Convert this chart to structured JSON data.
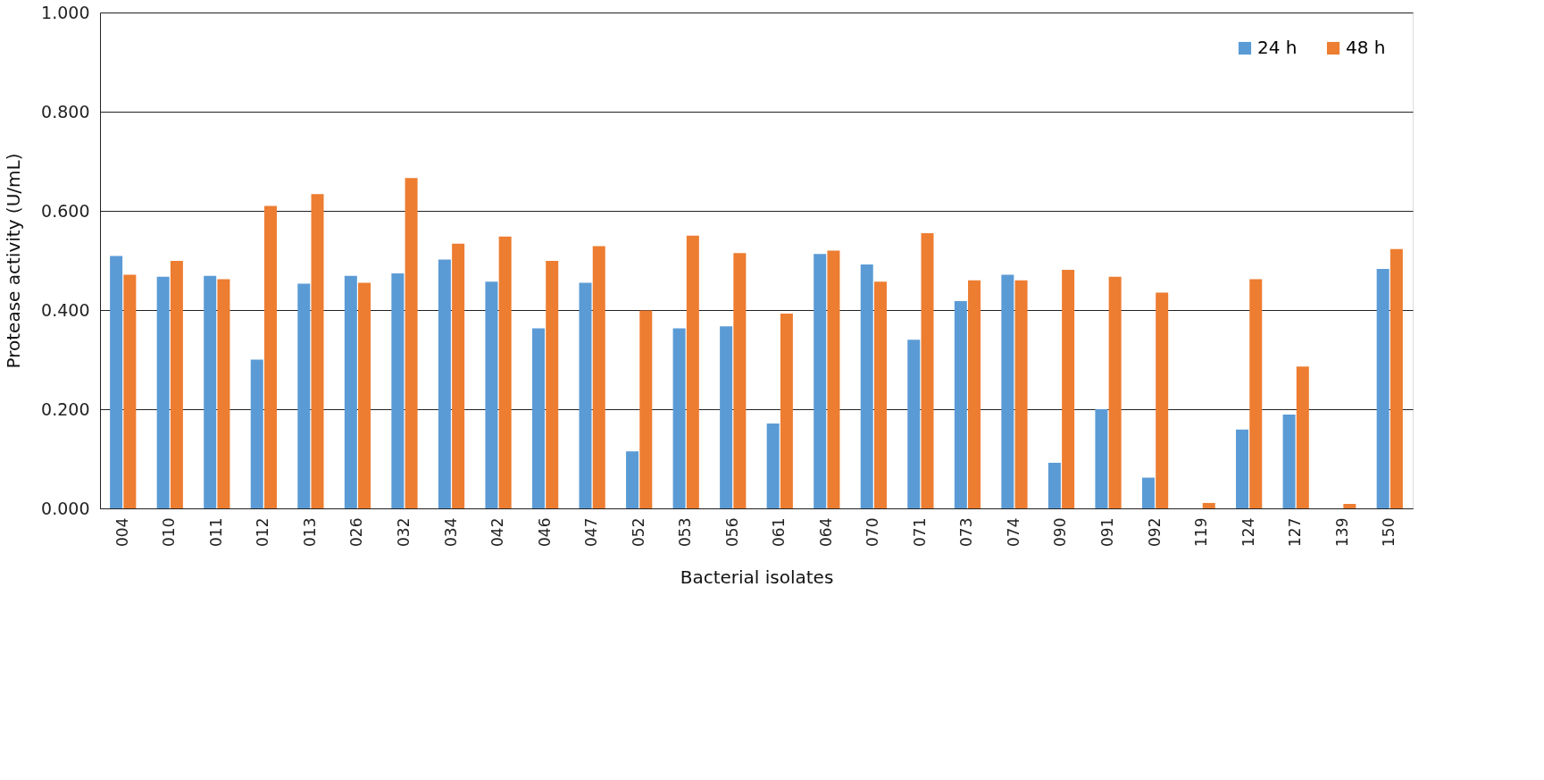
{
  "chart_data": {
    "type": "bar",
    "xlabel": "Bacterial isolates",
    "ylabel": "Protease activity (U/mL)",
    "categories": [
      "004",
      "010",
      "011",
      "012",
      "013",
      "026",
      "032",
      "034",
      "042",
      "046",
      "047",
      "052",
      "053",
      "056",
      "061",
      "064",
      "070",
      "071",
      "073",
      "074",
      "090",
      "091",
      "092",
      "119",
      "124",
      "127",
      "139",
      "150"
    ],
    "series": [
      {
        "name": "24 h",
        "color": "#5b9bd5",
        "values": [
          0.509,
          0.467,
          0.469,
          0.3,
          0.453,
          0.469,
          0.474,
          0.502,
          0.457,
          0.363,
          0.455,
          0.115,
          0.363,
          0.367,
          0.171,
          0.513,
          0.492,
          0.34,
          0.418,
          0.471,
          0.092,
          0.2,
          0.062,
          0,
          0.159,
          0.189,
          0,
          0.483
        ]
      },
      {
        "name": "48 h",
        "color": "#ed7d31",
        "values": [
          0.471,
          0.499,
          0.462,
          0.61,
          0.634,
          0.455,
          0.666,
          0.534,
          0.548,
          0.499,
          0.529,
          0.399,
          0.55,
          0.515,
          0.393,
          0.52,
          0.457,
          0.555,
          0.46,
          0.46,
          0.481,
          0.467,
          0.435,
          0.011,
          0.462,
          0.286,
          0.009,
          0.523
        ]
      }
    ],
    "ylim": [
      0,
      1.0
    ],
    "yticks": [
      {
        "value": 0,
        "label": "0.000"
      },
      {
        "value": 0.2,
        "label": "0.200"
      },
      {
        "value": 0.4,
        "label": "0.400"
      },
      {
        "value": 0.6,
        "label": "0.600"
      },
      {
        "value": 0.8,
        "label": "0.800"
      },
      {
        "value": 1.0,
        "label": "1.000"
      }
    ],
    "grid": "y",
    "legend": "top right"
  }
}
